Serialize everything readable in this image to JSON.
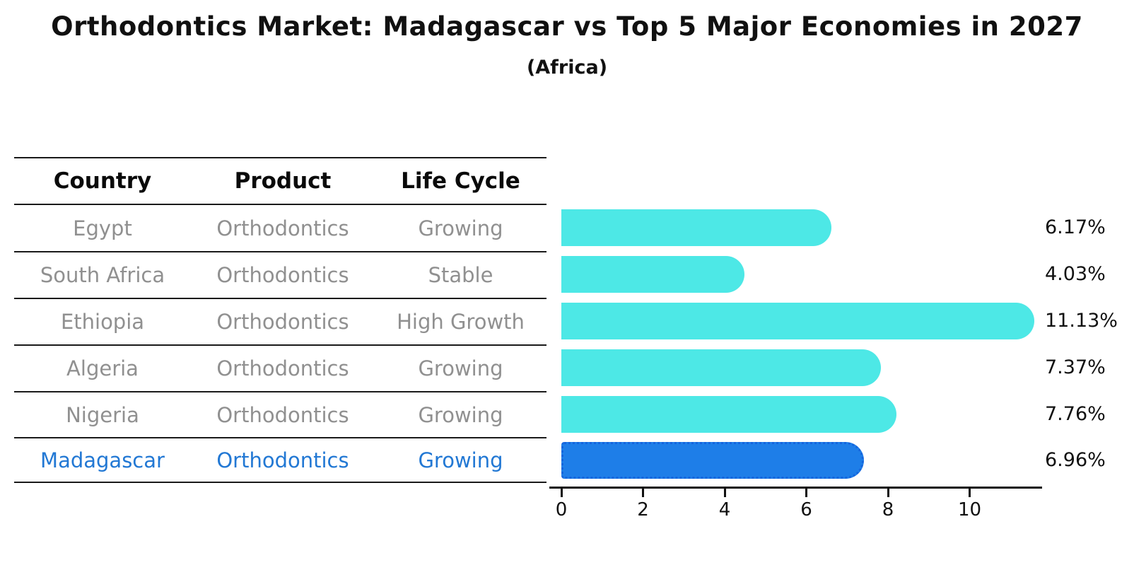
{
  "title": "Orthodontics Market: Madagascar vs Top 5 Major Economies in 2027",
  "subtitle": "(Africa)",
  "table": {
    "headers": [
      "Country",
      "Product",
      "Life Cycle"
    ],
    "rows": [
      {
        "country": "Egypt",
        "product": "Orthodontics",
        "life_cycle": "Growing",
        "highlight": false
      },
      {
        "country": "South Africa",
        "product": "Orthodontics",
        "life_cycle": "Stable",
        "highlight": false
      },
      {
        "country": "Ethiopia",
        "product": "Orthodontics",
        "life_cycle": "High Growth",
        "highlight": false
      },
      {
        "country": "Algeria",
        "product": "Orthodontics",
        "life_cycle": "Growing",
        "highlight": false
      },
      {
        "country": "Nigeria",
        "product": "Orthodontics",
        "life_cycle": "Growing",
        "highlight": false
      },
      {
        "country": "Madagascar",
        "product": "Orthodontics",
        "life_cycle": "Growing",
        "highlight": true
      }
    ]
  },
  "chart_data": {
    "type": "bar",
    "orientation": "horizontal",
    "title": "Orthodontics Market: Madagascar vs Top 5 Major Economies in 2027",
    "subtitle": "(Africa)",
    "categories": [
      "Egypt",
      "South Africa",
      "Ethiopia",
      "Algeria",
      "Nigeria",
      "Madagascar"
    ],
    "values": [
      6.17,
      4.03,
      11.13,
      7.37,
      7.76,
      6.96
    ],
    "value_labels": [
      "6.17%",
      "4.03%",
      "11.13%",
      "7.37%",
      "7.76%",
      "6.96%"
    ],
    "highlight_category": "Madagascar",
    "xticks": [
      0,
      2,
      4,
      6,
      8,
      10
    ],
    "xlim": [
      0,
      11.8
    ],
    "grid": false,
    "legend": false
  },
  "colors": {
    "background": "#ffffff",
    "bar": "#4de8e6",
    "bar_highlight": "#1e7ee8",
    "bar_highlight_border": "#1565dd",
    "table_text": "#909090",
    "highlight_text": "#2278d4",
    "header_text": "#0a0a0a",
    "axis_text": "#111111"
  }
}
